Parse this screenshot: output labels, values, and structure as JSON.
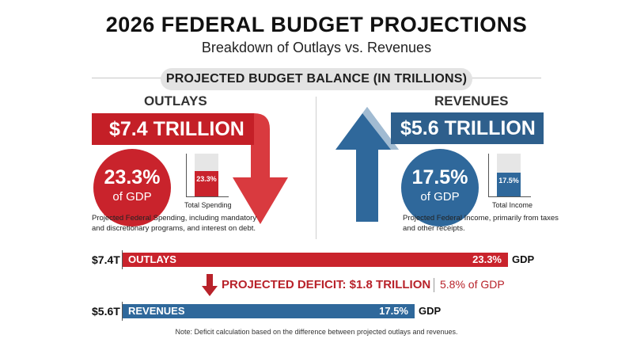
{
  "title": "2026 FEDERAL BUDGET PROJECTIONS",
  "subtitle": "Breakdown of Outlays vs. Revenues",
  "section_pill": "PROJECTED BUDGET BALANCE (IN TRILLIONS)",
  "outlays": {
    "header": "OUTLAYS",
    "banner": "$7.4 TRILLION",
    "gdp_pct": "23.3%",
    "gdp_label": "of GDP",
    "gauge_label": "23.3%",
    "gauge_fraction": 0.6,
    "gauge_caption": "Total Spending",
    "description_line1": "Projected Federal Spending, including mandatory",
    "description_line2": "and discretionary programs, and interest on debt."
  },
  "revenues": {
    "header": "REVENUES",
    "banner": "$5.6 TRILLION",
    "gdp_pct": "17.5%",
    "gdp_label": "of GDP",
    "gauge_label": "17.5%",
    "gauge_fraction": 0.55,
    "gauge_caption": "Total Income",
    "description_line1": "Projected Federal Income, primarily from taxes",
    "description_line2": "and other receipts."
  },
  "comparison": {
    "outlays_amount": "$7.4T",
    "outlays_name": "OUTLAYS",
    "outlays_pct": "23.3%",
    "revenues_amount": "$5.6T",
    "revenues_name": "REVENUES",
    "revenues_pct": "17.5%",
    "suffix": "GDP",
    "deficit_text": "PROJECTED DEFICIT: $1.8 TRILLION",
    "deficit_pct": "5.8% of GDP"
  },
  "note": "Note: Deficit calculation based on the difference between projected outlays and revenues.",
  "colors": {
    "red": "#c9232c",
    "blue": "#2f689b",
    "gray": "#e3e3e3"
  },
  "chart_data": {
    "type": "bar",
    "categories": [
      "OUTLAYS",
      "REVENUES"
    ],
    "values": [
      7.4,
      5.6
    ],
    "gdp_percent": [
      23.3,
      17.5
    ],
    "deficit": 1.8,
    "deficit_gdp_percent": 5.8,
    "title": "2026 FEDERAL BUDGET PROJECTIONS",
    "subtitle": "Breakdown of Outlays vs. Revenues",
    "xlabel": "",
    "ylabel": ""
  }
}
